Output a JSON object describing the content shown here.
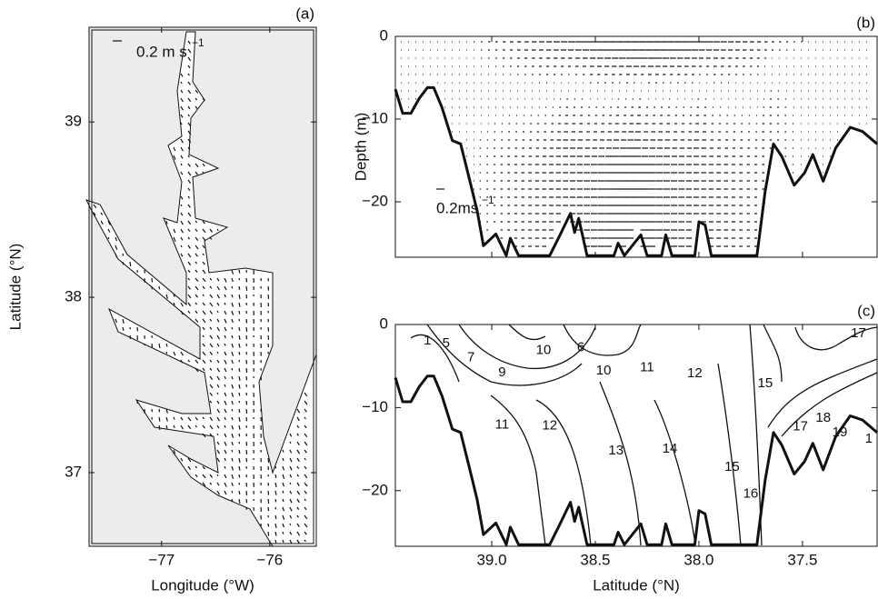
{
  "chart_data": [
    {
      "type": "map",
      "title": "(a)",
      "xlabel": "Longitude (°W)",
      "ylabel": "Latitude (°N)",
      "scale_label": "0.2 m s",
      "scale_label_sup": "−1",
      "xlim": [
        -77.67,
        -75.57
      ],
      "ylim": [
        36.58,
        39.54
      ],
      "xticks": [
        {
          "value": -77,
          "label": "−77"
        },
        {
          "value": -76,
          "label": "−76"
        }
      ],
      "yticks": [
        37,
        38,
        39
      ]
    },
    {
      "type": "quiver",
      "title": "(b)",
      "ylabel": "Depth (m)",
      "scale_label": "0.2ms",
      "scale_label_sup": "−1",
      "xlim": [
        39.465,
        37.14
      ],
      "ylim": [
        -26.7,
        0
      ],
      "xticks": [
        39,
        38.5,
        38,
        37.5
      ],
      "show_xtick_labels": false,
      "yticks": [
        0,
        {
          "value": -10,
          "label": "−10"
        },
        {
          "value": -20,
          "label": "−20"
        }
      ],
      "bathymetry": {
        "x": [
          39.465,
          39.43,
          39.39,
          39.35,
          39.31,
          39.28,
          39.24,
          39.19,
          39.15,
          39.11,
          39.07,
          39.04,
          38.98,
          38.93,
          38.91,
          38.87,
          38.8,
          38.72,
          38.67,
          38.62,
          38.6,
          38.58,
          38.54,
          38.41,
          38.39,
          38.36,
          38.28,
          38.25,
          38.18,
          38.16,
          38.13,
          38.02,
          38.0,
          37.97,
          37.94,
          37.72,
          37.68,
          37.64,
          37.6,
          37.54,
          37.49,
          37.45,
          37.4,
          37.34,
          37.27,
          37.21,
          37.14
        ],
        "values": [
          -6.4,
          -9.3,
          -9.3,
          -7.5,
          -6.2,
          -6.2,
          -8.6,
          -12.6,
          -13.0,
          -17.0,
          -21.1,
          -25.3,
          -23.9,
          -26.5,
          -24.4,
          -26.5,
          -26.5,
          -26.5,
          -24.0,
          -21.4,
          -23.7,
          -22.0,
          -26.5,
          -26.5,
          -25.0,
          -26.5,
          -24.0,
          -26.5,
          -26.5,
          -24.0,
          -26.5,
          -26.5,
          -22.4,
          -22.8,
          -26.5,
          -26.5,
          -18.7,
          -13.0,
          -14.5,
          -18.0,
          -16.5,
          -14.3,
          -17.5,
          -13.5,
          -11.0,
          -11.5,
          -13.0
        ]
      }
    },
    {
      "type": "contour",
      "title": "(c)",
      "xlabel": "Latitude (°N)",
      "xlim": [
        39.465,
        37.14
      ],
      "ylim": [
        -26.7,
        0
      ],
      "xticks": [
        {
          "value": 39,
          "label": "39.0"
        },
        38.5,
        {
          "value": 38,
          "label": "38.0"
        },
        37.5
      ],
      "yticks": [
        0,
        {
          "value": -10,
          "label": "−10"
        },
        {
          "value": -20,
          "label": "−20"
        }
      ],
      "bathymetry": {
        "x": [
          39.465,
          39.43,
          39.39,
          39.35,
          39.31,
          39.28,
          39.24,
          39.19,
          39.15,
          39.11,
          39.07,
          39.04,
          38.98,
          38.93,
          38.91,
          38.87,
          38.8,
          38.72,
          38.67,
          38.62,
          38.6,
          38.58,
          38.54,
          38.41,
          38.39,
          38.36,
          38.28,
          38.25,
          38.18,
          38.16,
          38.13,
          38.02,
          38.0,
          37.97,
          37.94,
          37.72,
          37.68,
          37.64,
          37.6,
          37.54,
          37.49,
          37.45,
          37.4,
          37.34,
          37.27,
          37.21,
          37.14
        ],
        "values": [
          -6.4,
          -9.3,
          -9.3,
          -7.5,
          -6.2,
          -6.2,
          -8.6,
          -12.6,
          -13.0,
          -17.0,
          -21.1,
          -25.3,
          -23.9,
          -26.5,
          -24.4,
          -26.5,
          -26.5,
          -26.5,
          -24.0,
          -21.4,
          -23.7,
          -22.0,
          -26.5,
          -26.5,
          -25.0,
          -26.5,
          -24.0,
          -26.5,
          -26.5,
          -24.0,
          -26.5,
          -26.5,
          -22.4,
          -22.8,
          -26.5,
          -26.5,
          -18.7,
          -13.0,
          -14.5,
          -18.0,
          -16.5,
          -14.3,
          -17.5,
          -13.5,
          -11.0,
          -11.5,
          -13.0
        ]
      },
      "contour_labels": [
        {
          "value": 1,
          "x": 39.31,
          "y": -2.0
        },
        {
          "value": 5,
          "x": 39.22,
          "y": -2.3
        },
        {
          "value": 7,
          "x": 39.1,
          "y": -4.0
        },
        {
          "value": 9,
          "x": 38.95,
          "y": -5.8
        },
        {
          "value": 10,
          "x": 38.75,
          "y": -3.1
        },
        {
          "value": 6,
          "x": 38.57,
          "y": -2.8
        },
        {
          "value": 10,
          "x": 38.46,
          "y": -5.6
        },
        {
          "value": 11,
          "x": 38.25,
          "y": -5.2
        },
        {
          "value": 12,
          "x": 38.02,
          "y": -5.9
        },
        {
          "value": 15,
          "x": 37.68,
          "y": -7.1
        },
        {
          "value": 17,
          "x": 37.23,
          "y": -1.1
        },
        {
          "value": 17,
          "x": 37.51,
          "y": -12.3
        },
        {
          "value": 18,
          "x": 37.4,
          "y": -11.3
        },
        {
          "value": 19,
          "x": 37.32,
          "y": -13.0
        },
        {
          "value": 1,
          "x": 37.18,
          "y": -13.8
        },
        {
          "value": 11,
          "x": 38.95,
          "y": -12.1
        },
        {
          "value": 12,
          "x": 38.72,
          "y": -12.2
        },
        {
          "value": 13,
          "x": 38.4,
          "y": -15.2
        },
        {
          "value": 14,
          "x": 38.14,
          "y": -15.0
        },
        {
          "value": 15,
          "x": 37.84,
          "y": -17.2
        },
        {
          "value": 16,
          "x": 37.75,
          "y": -20.4
        }
      ]
    }
  ]
}
